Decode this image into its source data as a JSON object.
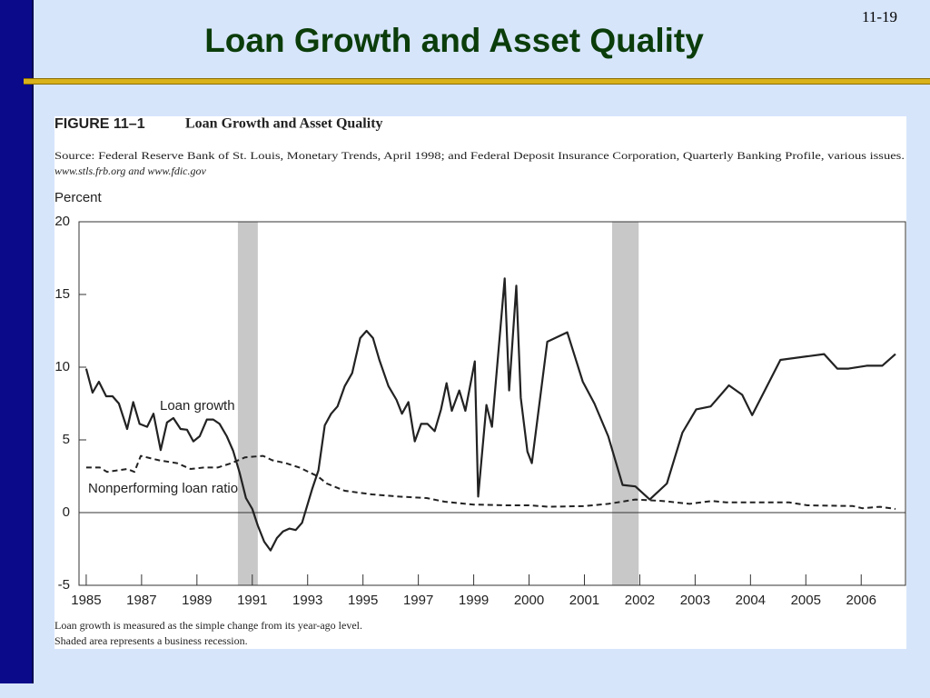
{
  "slide": {
    "title": "Loan Growth and Asset Quality",
    "page_number": "11-19"
  },
  "chart_data": {
    "type": "line",
    "figure_label": "FIGURE 11–1",
    "title": "Loan Growth and Asset Quality",
    "source": [
      "Source: Federal Reserve Bank of St. Louis, Monetary Trends, April 1998; and Federal Deposit Insurance Corporation, Quarterly Banking Profile, various issues.",
      "www.stls.frb.org and www.fdic.gov"
    ],
    "y_label": "Percent",
    "notes": [
      "Loan growth is measured as the simple change from its year-ago level.",
      "Shaded area represents a business recession."
    ],
    "xlim": [
      1984.74,
      2006.8
    ],
    "xticks": [
      1985,
      1987,
      1989,
      1991,
      1993,
      1995,
      1997,
      1999,
      2000,
      2001,
      2002,
      2003,
      2004,
      2005,
      2006
    ],
    "ylim": [
      -5,
      20
    ],
    "yticks": [
      -5,
      0,
      5,
      10,
      15,
      20
    ],
    "recessions": [
      [
        1990.48,
        1991.2
      ],
      [
        2001.5,
        2001.98
      ]
    ],
    "recession_color": "#c8c8c8",
    "series": [
      {
        "name": "Loan growth",
        "color": "#222222",
        "dashed": false,
        "x": [
          1985.0,
          1985.23,
          1985.46,
          1985.72,
          1985.95,
          1986.18,
          1986.48,
          1986.7,
          1986.93,
          1987.2,
          1987.43,
          1987.69,
          1987.92,
          1988.15,
          1988.41,
          1988.64,
          1988.87,
          1989.1,
          1989.36,
          1989.59,
          1989.82,
          1990.08,
          1990.31,
          1990.54,
          1990.77,
          1991.0,
          1991.2,
          1991.43,
          1991.66,
          1991.89,
          1992.11,
          1992.34,
          1992.57,
          1992.8,
          1993.16,
          1993.39,
          1993.62,
          1993.85,
          1994.08,
          1994.34,
          1994.61,
          1994.9,
          1995.13,
          1995.36,
          1995.59,
          1995.92,
          1996.21,
          1996.41,
          1996.64,
          1996.87,
          1997.1,
          1997.33,
          1997.59,
          1997.82,
          1998.02,
          1998.21,
          1998.48,
          1998.7,
          1999.02,
          1999.08,
          1999.23,
          1999.33,
          1999.56,
          1999.64,
          1999.77,
          1999.85,
          1999.97,
          2000.05,
          2000.33,
          2000.69,
          2000.97,
          2001.18,
          2001.43,
          2001.69,
          2001.92,
          2002.18,
          2002.49,
          2002.77,
          2003.02,
          2003.28,
          2003.61,
          2003.85,
          2004.03,
          2004.54,
          2005.33,
          2005.52,
          2005.57,
          2005.77,
          2006.1,
          2006.38,
          2006.62
        ],
        "values": [
          9.9,
          8.25,
          9.0,
          8.0,
          8.0,
          7.5,
          5.75,
          7.6,
          6.1,
          5.9,
          6.8,
          4.3,
          6.2,
          6.5,
          5.75,
          5.7,
          4.9,
          5.25,
          6.4,
          6.4,
          6.1,
          5.25,
          4.25,
          2.75,
          1.0,
          0.25,
          -0.9,
          -2.0,
          -2.6,
          -1.75,
          -1.3,
          -1.1,
          -1.2,
          -0.7,
          1.6,
          2.9,
          6.0,
          6.8,
          7.3,
          8.7,
          9.6,
          12.0,
          12.5,
          12.0,
          10.5,
          8.7,
          7.75,
          6.8,
          7.6,
          4.9,
          6.1,
          6.1,
          5.6,
          7.1,
          8.9,
          7.0,
          8.4,
          7.0,
          10.4,
          1.1,
          7.4,
          5.9,
          16.1,
          8.4,
          15.6,
          7.9,
          4.2,
          3.4,
          11.75,
          12.4,
          9.0,
          7.5,
          5.25,
          1.9,
          1.8,
          0.9,
          2.0,
          5.5,
          7.1,
          7.3,
          8.75,
          8.1,
          6.7,
          10.5,
          10.9,
          10.1,
          9.9,
          9.9,
          10.1,
          10.1,
          10.9
        ]
      },
      {
        "name": "Nonperforming loan ratio",
        "color": "#222222",
        "dashed": true,
        "x": [
          1985.0,
          1985.49,
          1985.75,
          1986.48,
          1986.74,
          1986.97,
          1987.62,
          1988.28,
          1988.77,
          1989.26,
          1989.75,
          1990.25,
          1990.74,
          1991.39,
          1991.72,
          1992.21,
          1992.7,
          1993.36,
          1993.69,
          1994.34,
          1995.33,
          1996.31,
          1997.3,
          1997.95,
          1999.0,
          1999.62,
          2000.0,
          2000.36,
          2001.0,
          2001.43,
          2001.92,
          2002.41,
          2002.9,
          2003.31,
          2003.56,
          2004.21,
          2004.7,
          2005.03,
          2005.85,
          2006.02,
          2006.34,
          2006.62
        ],
        "values": [
          3.1,
          3.1,
          2.8,
          3.0,
          2.8,
          3.9,
          3.6,
          3.4,
          3.0,
          3.1,
          3.1,
          3.4,
          3.8,
          3.9,
          3.6,
          3.4,
          3.1,
          2.5,
          2.0,
          1.5,
          1.25,
          1.1,
          1.0,
          0.75,
          0.55,
          0.5,
          0.5,
          0.4,
          0.45,
          0.6,
          0.9,
          0.8,
          0.6,
          0.8,
          0.7,
          0.7,
          0.7,
          0.5,
          0.45,
          0.3,
          0.4,
          0.25
        ]
      }
    ]
  }
}
